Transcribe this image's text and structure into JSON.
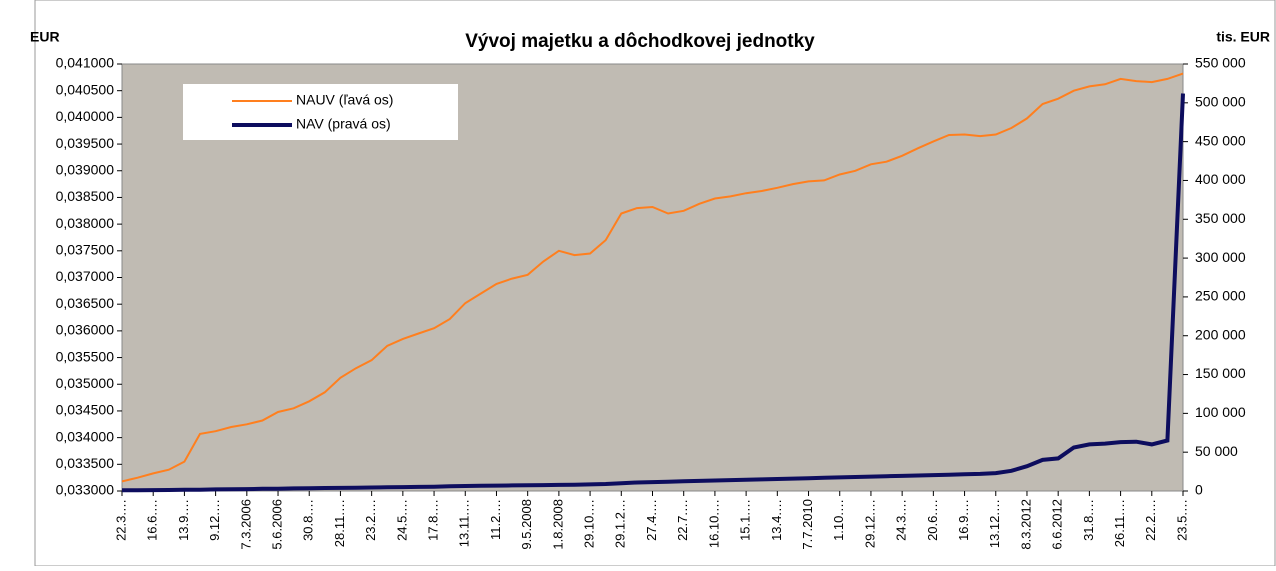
{
  "chart_data": {
    "type": "line",
    "title": "Vývoj majetku a dôchodkovej jednotky",
    "y_label": "EUR",
    "y2_label": "tis. EUR",
    "categories": [
      "22.3.…",
      null,
      "16.6.…",
      null,
      "13.9.…",
      null,
      "9.12.…",
      null,
      "7.3.2006",
      null,
      "5.6.2006",
      null,
      "30.8.…",
      null,
      "28.11.…",
      null,
      "23.2.…",
      null,
      "24.5.…",
      null,
      "17.8.…",
      null,
      "13.11.…",
      null,
      "11.2.…",
      null,
      "9.5.2008",
      null,
      "1.8.2008",
      null,
      "29.10.…",
      null,
      "29.1.2…",
      null,
      "27.4.…",
      null,
      "22.7.…",
      null,
      "16.10.…",
      null,
      "15.1.…",
      null,
      "13.4.…",
      null,
      "7.7.2010",
      null,
      "1.10.…",
      null,
      "29.12.…",
      null,
      "24.3.…",
      null,
      "20.6.…",
      null,
      "16.9.…",
      null,
      "13.12.…",
      null,
      "8.3.2012",
      null,
      "6.6.2012",
      null,
      "31.8.…",
      null,
      "26.11.…",
      null,
      "22.2.…",
      null,
      "23.5.…"
    ],
    "series": [
      {
        "name": "NAUV (ľavá os)",
        "color": "#ff7f1e",
        "axis": "y",
        "values": [
          0.03318,
          0.03325,
          0.03333,
          0.0334,
          0.03355,
          0.03407,
          0.03412,
          0.0342,
          0.03425,
          0.03432,
          0.03448,
          0.03455,
          0.03468,
          0.03485,
          0.03512,
          0.0353,
          0.03545,
          0.03572,
          0.03585,
          0.03595,
          0.03605,
          0.03622,
          0.03652,
          0.0367,
          0.03688,
          0.03698,
          0.03705,
          0.0373,
          0.0375,
          0.03742,
          0.03745,
          0.0377,
          0.0382,
          0.0383,
          0.03832,
          0.0382,
          0.03825,
          0.03838,
          0.03848,
          0.03852,
          0.03858,
          0.03862,
          0.03868,
          0.03875,
          0.0388,
          0.03882,
          0.03893,
          0.039,
          0.03912,
          0.03917,
          0.03928,
          0.03942,
          0.03955,
          0.03967,
          0.03968,
          0.03965,
          0.03968,
          0.0398,
          0.03998,
          0.04025,
          0.04035,
          0.0405,
          0.04058,
          0.04062,
          0.04072,
          0.04068,
          0.04066,
          0.04072,
          0.04082
        ]
      },
      {
        "name": "NAV (pravá os)",
        "color": "#0d0d5e",
        "axis": "y2",
        "values": [
          1000,
          1000,
          1200,
          1300,
          1500,
          1700,
          2000,
          2300,
          2500,
          2800,
          3000,
          3300,
          3500,
          3800,
          4000,
          4300,
          4500,
          4800,
          5000,
          5300,
          5600,
          6000,
          6400,
          6800,
          7000,
          7200,
          7400,
          7600,
          7800,
          8000,
          8500,
          9000,
          10000,
          11000,
          11500,
          12000,
          12500,
          13000,
          13500,
          14000,
          14500,
          15000,
          15500,
          16000,
          16500,
          17000,
          17500,
          18000,
          18500,
          19000,
          19500,
          20000,
          20500,
          21000,
          21500,
          22000,
          23000,
          26000,
          32000,
          40000,
          42000,
          56000,
          60000,
          61000,
          63000,
          63500,
          60000,
          65000,
          512000
        ]
      }
    ],
    "ylim": [
      0.033,
      0.041
    ],
    "yticks": [
      {
        "value": 0.033,
        "label": "0,033000"
      },
      {
        "value": 0.0335,
        "label": "0,033500"
      },
      {
        "value": 0.034,
        "label": "0,034000"
      },
      {
        "value": 0.0345,
        "label": "0,034500"
      },
      {
        "value": 0.035,
        "label": "0,035000"
      },
      {
        "value": 0.0355,
        "label": "0,035500"
      },
      {
        "value": 0.036,
        "label": "0,036000"
      },
      {
        "value": 0.0365,
        "label": "0,036500"
      },
      {
        "value": 0.037,
        "label": "0,037000"
      },
      {
        "value": 0.0375,
        "label": "0,037500"
      },
      {
        "value": 0.038,
        "label": "0,038000"
      },
      {
        "value": 0.0385,
        "label": "0,038500"
      },
      {
        "value": 0.039,
        "label": "0,039000"
      },
      {
        "value": 0.0395,
        "label": "0,039500"
      },
      {
        "value": 0.04,
        "label": "0,040000"
      },
      {
        "value": 0.0405,
        "label": "0,040500"
      },
      {
        "value": 0.041,
        "label": "0,041000"
      }
    ],
    "y2lim": [
      0,
      550000
    ],
    "y2ticks": [
      0,
      {
        "value": 50000,
        "label": "50 000"
      },
      {
        "value": 100000,
        "label": "100 000"
      },
      {
        "value": 150000,
        "label": "150 000"
      },
      {
        "value": 200000,
        "label": "200 000"
      },
      {
        "value": 250000,
        "label": "250 000"
      },
      {
        "value": 300000,
        "label": "300 000"
      },
      {
        "value": 350000,
        "label": "350 000"
      },
      {
        "value": 400000,
        "label": "400 000"
      },
      {
        "value": 450000,
        "label": "450 000"
      },
      {
        "value": 500000,
        "label": "500 000"
      },
      {
        "value": 550000,
        "label": "550 000"
      }
    ],
    "grid": false,
    "legend": "upper left"
  }
}
